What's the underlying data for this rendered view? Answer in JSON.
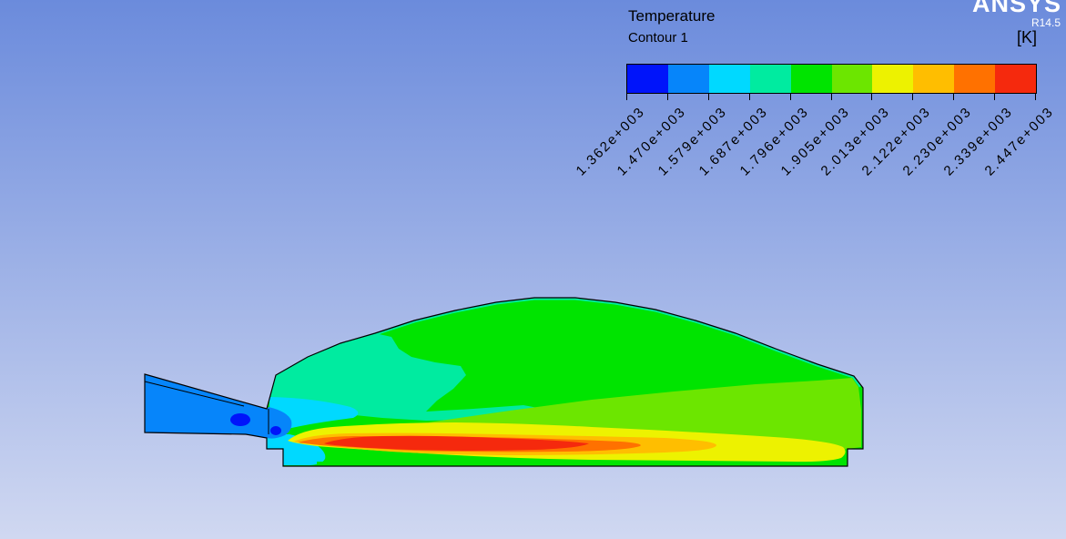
{
  "legend": {
    "title": "Temperature",
    "subtitle": "Contour 1",
    "unit": "[K]",
    "tick_labels": [
      "1.362e+003",
      "1.470e+003",
      "1.579e+003",
      "1.687e+003",
      "1.796e+003",
      "1.905e+003",
      "2.013e+003",
      "2.122e+003",
      "2.230e+003",
      "2.339e+003",
      "2.447e+003"
    ],
    "band_colors": [
      "#0014FA",
      "#0685FA",
      "#00D9FF",
      "#00EBA0",
      "#00E400",
      "#6CE600",
      "#EDF200",
      "#FFBE00",
      "#FF7100",
      "#F5290D"
    ]
  },
  "watermark": {
    "brand": "ANSYS",
    "version": "R14.5"
  },
  "background": {
    "top": "#6B8BDC",
    "bottom": "#D0D8F1"
  },
  "chart_data": {
    "type": "heatmap",
    "subtype": "CFD temperature contour (combustor cross-section)",
    "title": "Temperature",
    "subtitle": "Contour 1",
    "unit": "K",
    "levels_K": [
      1362,
      1470,
      1579,
      1687,
      1796,
      1905,
      2013,
      2122,
      2230,
      2339,
      2447
    ],
    "level_labels": [
      "1.362e+003",
      "1.470e+003",
      "1.579e+003",
      "1.687e+003",
      "1.796e+003",
      "1.905e+003",
      "2.013e+003",
      "2.122e+003",
      "2.230e+003",
      "2.339e+003",
      "2.447e+003"
    ],
    "band_colors": [
      "#0014FA",
      "#0685FA",
      "#00D9FF",
      "#00EBA0",
      "#00E400",
      "#6CE600",
      "#EDF200",
      "#FFBE00",
      "#FF7100",
      "#F5290D"
    ],
    "legend_position": "top-right",
    "regions": [
      {
        "area": "inlet duct (left wedge)",
        "approx_K": "1400-1520",
        "color": "#0685FA"
      },
      {
        "area": "spots inside inlet near nozzle",
        "approx_K": "1362-1470",
        "color": "#0014FA"
      },
      {
        "area": "recirculation zone just downstream of nozzle",
        "approx_K": "1580-1680",
        "color": "#00D9FF"
      },
      {
        "area": "upper-left of chamber and thin layer along dome wall",
        "approx_K": "1700-1800",
        "color": "#00EBA0"
      },
      {
        "area": "bulk of dome-shaped chamber",
        "approx_K": "1800-1900",
        "color": "#00E400"
      },
      {
        "area": "mid-right of chamber toward outlet",
        "approx_K": "1900-2010",
        "color": "#6CE600"
      },
      {
        "area": "broad band above/around flame plume reaching outlet",
        "approx_K": "2010-2120",
        "color": "#EDF200"
      },
      {
        "area": "flame outer sheath along bottom axis",
        "approx_K": "2120-2230",
        "color": "#FFBE00"
      },
      {
        "area": "flame body along bottom axis",
        "approx_K": "2230-2340",
        "color": "#FF7100"
      },
      {
        "area": "flame core (elongated, near centerline x≈355-655)",
        "approx_K": "2340-2447",
        "color": "#F5290D"
      }
    ]
  }
}
